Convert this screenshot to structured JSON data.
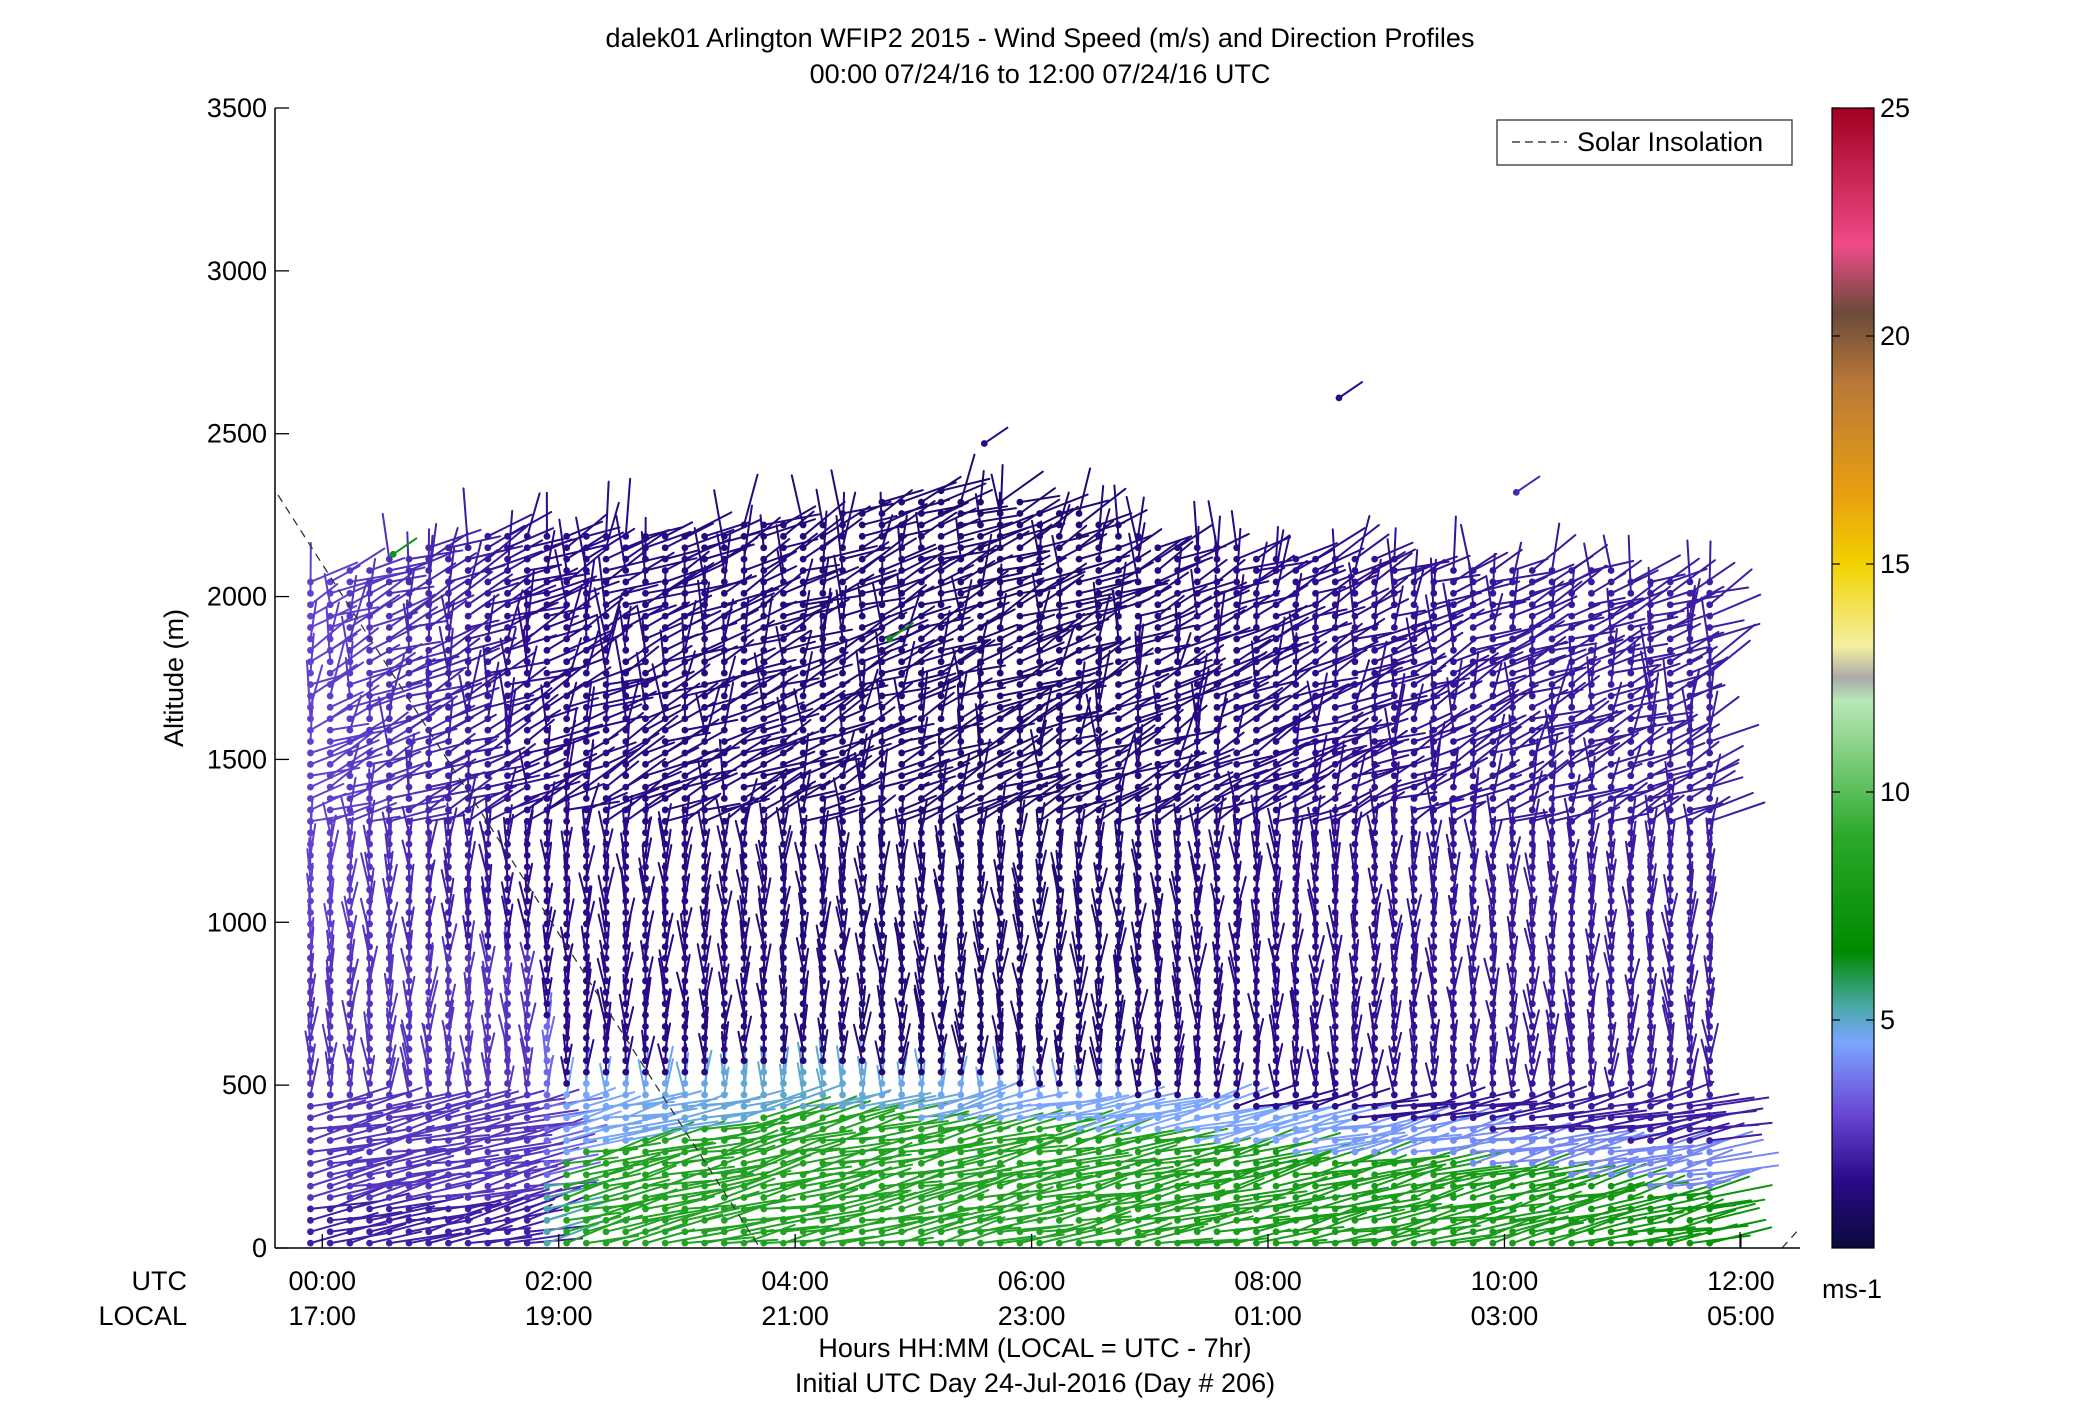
{
  "chart_data": {
    "type": "wind_barbs",
    "title": "dalek01 Arlington WFIP2 2015 - Wind Speed (m/s) and Direction Profiles",
    "subtitle": "00:00 07/24/16 to 12:00 07/24/16  UTC",
    "ylabel": "Altitude (m)",
    "xlabel": "Hours HH:MM  (LOCAL = UTC - 7hr)",
    "xlabel2": "Initial UTC Day 24-Jul-2016 (Day # 206)",
    "row_label_utc": "UTC",
    "row_label_local": "LOCAL",
    "xlim_hours": [
      -0.4,
      12.5
    ],
    "ylim": [
      0,
      3500
    ],
    "y_ticks": [
      0,
      500,
      1000,
      1500,
      2000,
      2500,
      3000,
      3500
    ],
    "x_ticks": [
      {
        "hour": 0,
        "utc": "00:00",
        "local": "17:00"
      },
      {
        "hour": 2,
        "utc": "02:00",
        "local": "19:00"
      },
      {
        "hour": 4,
        "utc": "04:00",
        "local": "21:00"
      },
      {
        "hour": 6,
        "utc": "06:00",
        "local": "23:00"
      },
      {
        "hour": 8,
        "utc": "08:00",
        "local": "01:00"
      },
      {
        "hour": 10,
        "utc": "10:00",
        "local": "03:00"
      },
      {
        "hour": 12,
        "utc": "12:00",
        "local": "05:00"
      }
    ],
    "legend": {
      "label": "Solar Insolation",
      "placement": "top-right",
      "style": "dashed"
    },
    "colorbar": {
      "label": "ms-1",
      "range": [
        0,
        25
      ],
      "ticks": [
        5,
        10,
        15,
        20,
        25
      ],
      "stops": [
        {
          "v": 0,
          "c": "#0a0a3c"
        },
        {
          "v": 1.5,
          "c": "#2a0a8a"
        },
        {
          "v": 3,
          "c": "#6a4ad8"
        },
        {
          "v": 4.5,
          "c": "#7aa6ff"
        },
        {
          "v": 5.3,
          "c": "#4aa8a8"
        },
        {
          "v": 6.5,
          "c": "#008a00"
        },
        {
          "v": 9,
          "c": "#2aa82a"
        },
        {
          "v": 12,
          "c": "#b8e8b8"
        },
        {
          "v": 12.5,
          "c": "#aaaaaa"
        },
        {
          "v": 13.2,
          "c": "#f4f0a0"
        },
        {
          "v": 15,
          "c": "#f2d200"
        },
        {
          "v": 16.5,
          "c": "#e8a010"
        },
        {
          "v": 19,
          "c": "#b87838"
        },
        {
          "v": 20.5,
          "c": "#6a4a3a"
        },
        {
          "v": 22,
          "c": "#f04a88"
        },
        {
          "v": 25,
          "c": "#a00020"
        }
      ]
    },
    "profile_interval_hours": 0.1667,
    "profile_start_hour": -0.1,
    "profile_count": 72,
    "level_spacing_m": 35,
    "top_altitude_profile": [
      {
        "hour": -0.1,
        "alt": 2060
      },
      {
        "hour": 1.0,
        "alt": 2170
      },
      {
        "hour": 2.0,
        "alt": 2220
      },
      {
        "hour": 3.0,
        "alt": 2200
      },
      {
        "hour": 4.2,
        "alt": 2250
      },
      {
        "hour": 5.2,
        "alt": 2330
      },
      {
        "hour": 6.2,
        "alt": 2280
      },
      {
        "hour": 7.2,
        "alt": 2170
      },
      {
        "hour": 8.5,
        "alt": 2130
      },
      {
        "hour": 9.8,
        "alt": 2100
      },
      {
        "hour": 10.8,
        "alt": 2090
      },
      {
        "hour": 11.5,
        "alt": 2050
      },
      {
        "hour": 12.1,
        "alt": 2050
      }
    ],
    "speed_layers": [
      {
        "hour": 0,
        "layers": [
          {
            "top": 140,
            "speed": 2
          },
          {
            "top": 900,
            "speed": 2.5
          },
          {
            "top": 2100,
            "speed": 2.8
          }
        ]
      },
      {
        "hour": 1.8,
        "layers": [
          {
            "top": 140,
            "speed": 2
          },
          {
            "top": 900,
            "speed": 2.5
          },
          {
            "top": 2200,
            "speed": 1.5
          }
        ]
      },
      {
        "hour": 2.0,
        "layers": [
          {
            "top": 280,
            "speed": 8.5
          },
          {
            "top": 500,
            "speed": 4.5
          },
          {
            "top": 2200,
            "speed": 1.5
          }
        ]
      },
      {
        "hour": 4.0,
        "layers": [
          {
            "top": 420,
            "speed": 8.5
          },
          {
            "top": 560,
            "speed": 5
          },
          {
            "top": 2250,
            "speed": 1.2
          }
        ]
      },
      {
        "hour": 6.0,
        "layers": [
          {
            "top": 380,
            "speed": 8.5
          },
          {
            "top": 500,
            "speed": 4.5
          },
          {
            "top": 2300,
            "speed": 1.0
          }
        ]
      },
      {
        "hour": 8.0,
        "layers": [
          {
            "top": 300,
            "speed": 8
          },
          {
            "top": 420,
            "speed": 4.5
          },
          {
            "top": 2150,
            "speed": 1.5
          }
        ]
      },
      {
        "hour": 10.0,
        "layers": [
          {
            "top": 250,
            "speed": 8
          },
          {
            "top": 360,
            "speed": 4
          },
          {
            "top": 2100,
            "speed": 1.8
          }
        ]
      },
      {
        "hour": 12.0,
        "layers": [
          {
            "top": 150,
            "speed": 7
          },
          {
            "top": 300,
            "speed": 4
          },
          {
            "top": 2050,
            "speed": 2
          }
        ]
      }
    ],
    "isolated_barbs": [
      {
        "hour": 8.6,
        "alt": 2610,
        "speed": 1.5
      },
      {
        "hour": 5.6,
        "alt": 2470,
        "speed": 1.5
      },
      {
        "hour": 10.1,
        "alt": 2320,
        "speed": 2.2
      },
      {
        "hour": 4.8,
        "alt": 1870,
        "speed": 7.5
      },
      {
        "hour": 0.6,
        "alt": 2130,
        "speed": 7.5
      }
    ]
  }
}
